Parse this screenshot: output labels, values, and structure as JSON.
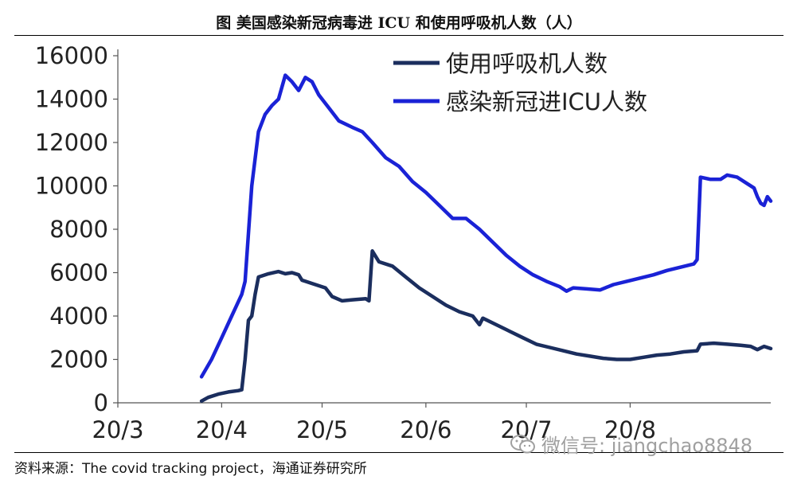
{
  "header": {
    "title": "图  美国感染新冠病毒进 ICU 和使用呼吸机人数（人）"
  },
  "footer": {
    "source": "资料来源：The covid tracking project，海通证券研究所",
    "watermark": "微信号: jiangchao8848",
    "watermark_icon": "wechat-icon"
  },
  "chart_data": {
    "type": "line",
    "title": "图  美国感染新冠病毒进 ICU 和使用呼吸机人数（人）",
    "xlabel": "",
    "ylabel": "",
    "x_ticks": [
      "20/3",
      "20/4",
      "20/5",
      "20/6",
      "20/7",
      "20/8"
    ],
    "y_ticks": [
      0,
      2000,
      4000,
      6000,
      8000,
      10000,
      12000,
      14000,
      16000
    ],
    "ylim": [
      0,
      16000
    ],
    "grid": false,
    "legend_position": "top-right",
    "series": [
      {
        "name": "使用呼吸机人数",
        "color": "#1b2e5e",
        "points": [
          [
            "2020-03-26",
            80
          ],
          [
            "2020-03-28",
            250
          ],
          [
            "2020-03-31",
            400
          ],
          [
            "2020-04-03",
            500
          ],
          [
            "2020-04-06",
            560
          ],
          [
            "2020-04-07",
            600
          ],
          [
            "2020-04-08",
            2000
          ],
          [
            "2020-04-09",
            3800
          ],
          [
            "2020-04-10",
            4000
          ],
          [
            "2020-04-11",
            5000
          ],
          [
            "2020-04-12",
            5800
          ],
          [
            "2020-04-15",
            5950
          ],
          [
            "2020-04-18",
            6050
          ],
          [
            "2020-04-20",
            5950
          ],
          [
            "2020-04-22",
            6000
          ],
          [
            "2020-04-24",
            5900
          ],
          [
            "2020-04-25",
            5650
          ],
          [
            "2020-04-28",
            5500
          ],
          [
            "2020-05-02",
            5300
          ],
          [
            "2020-05-04",
            4900
          ],
          [
            "2020-05-07",
            4700
          ],
          [
            "2020-05-10",
            4750
          ],
          [
            "2020-05-14",
            4800
          ],
          [
            "2020-05-15",
            4700
          ],
          [
            "2020-05-16",
            7000
          ],
          [
            "2020-05-18",
            6500
          ],
          [
            "2020-05-22",
            6300
          ],
          [
            "2020-05-26",
            5800
          ],
          [
            "2020-05-30",
            5300
          ],
          [
            "2020-06-03",
            4900
          ],
          [
            "2020-06-07",
            4500
          ],
          [
            "2020-06-11",
            4200
          ],
          [
            "2020-06-15",
            4000
          ],
          [
            "2020-06-17",
            3600
          ],
          [
            "2020-06-18",
            3900
          ],
          [
            "2020-06-22",
            3600
          ],
          [
            "2020-06-26",
            3300
          ],
          [
            "2020-06-30",
            3000
          ],
          [
            "2020-07-04",
            2700
          ],
          [
            "2020-07-08",
            2550
          ],
          [
            "2020-07-12",
            2400
          ],
          [
            "2020-07-16",
            2250
          ],
          [
            "2020-07-20",
            2150
          ],
          [
            "2020-07-24",
            2050
          ],
          [
            "2020-07-28",
            2000
          ],
          [
            "2020-08-01",
            2000
          ],
          [
            "2020-08-05",
            2100
          ],
          [
            "2020-08-09",
            2200
          ],
          [
            "2020-08-13",
            2250
          ],
          [
            "2020-08-17",
            2350
          ],
          [
            "2020-08-21",
            2400
          ],
          [
            "2020-08-22",
            2700
          ],
          [
            "2020-08-26",
            2750
          ],
          [
            "2020-08-30",
            2700
          ],
          [
            "2020-09-03",
            2650
          ],
          [
            "2020-09-06",
            2600
          ],
          [
            "2020-09-08",
            2450
          ],
          [
            "2020-09-10",
            2600
          ],
          [
            "2020-09-12",
            2500
          ]
        ]
      },
      {
        "name": "感染新冠进ICU人数",
        "color": "#1a22d6",
        "points": [
          [
            "2020-03-26",
            1200
          ],
          [
            "2020-03-29",
            2000
          ],
          [
            "2020-04-01",
            3000
          ],
          [
            "2020-04-04",
            4000
          ],
          [
            "2020-04-07",
            5000
          ],
          [
            "2020-04-08",
            5600
          ],
          [
            "2020-04-10",
            10000
          ],
          [
            "2020-04-12",
            12500
          ],
          [
            "2020-04-14",
            13300
          ],
          [
            "2020-04-16",
            13700
          ],
          [
            "2020-04-18",
            14000
          ],
          [
            "2020-04-20",
            15100
          ],
          [
            "2020-04-22",
            14800
          ],
          [
            "2020-04-24",
            14400
          ],
          [
            "2020-04-26",
            15000
          ],
          [
            "2020-04-28",
            14800
          ],
          [
            "2020-04-30",
            14200
          ],
          [
            "2020-05-03",
            13600
          ],
          [
            "2020-05-06",
            13000
          ],
          [
            "2020-05-10",
            12700
          ],
          [
            "2020-05-13",
            12500
          ],
          [
            "2020-05-16",
            12000
          ],
          [
            "2020-05-20",
            11300
          ],
          [
            "2020-05-24",
            10900
          ],
          [
            "2020-05-28",
            10200
          ],
          [
            "2020-06-01",
            9700
          ],
          [
            "2020-06-05",
            9100
          ],
          [
            "2020-06-09",
            8500
          ],
          [
            "2020-06-13",
            8500
          ],
          [
            "2020-06-17",
            8000
          ],
          [
            "2020-06-21",
            7400
          ],
          [
            "2020-06-25",
            6800
          ],
          [
            "2020-06-29",
            6300
          ],
          [
            "2020-07-03",
            5900
          ],
          [
            "2020-07-07",
            5600
          ],
          [
            "2020-07-11",
            5350
          ],
          [
            "2020-07-13",
            5150
          ],
          [
            "2020-07-15",
            5300
          ],
          [
            "2020-07-19",
            5250
          ],
          [
            "2020-07-23",
            5200
          ],
          [
            "2020-07-27",
            5450
          ],
          [
            "2020-07-31",
            5600
          ],
          [
            "2020-08-04",
            5750
          ],
          [
            "2020-08-08",
            5900
          ],
          [
            "2020-08-12",
            6100
          ],
          [
            "2020-08-16",
            6250
          ],
          [
            "2020-08-20",
            6400
          ],
          [
            "2020-08-21",
            6600
          ],
          [
            "2020-08-22",
            10400
          ],
          [
            "2020-08-25",
            10300
          ],
          [
            "2020-08-28",
            10300
          ],
          [
            "2020-08-30",
            10500
          ],
          [
            "2020-09-02",
            10400
          ],
          [
            "2020-09-05",
            10100
          ],
          [
            "2020-09-07",
            9900
          ],
          [
            "2020-09-08",
            9500
          ],
          [
            "2020-09-09",
            9200
          ],
          [
            "2020-09-10",
            9100
          ],
          [
            "2020-09-11",
            9500
          ],
          [
            "2020-09-12",
            9300
          ]
        ]
      }
    ]
  }
}
